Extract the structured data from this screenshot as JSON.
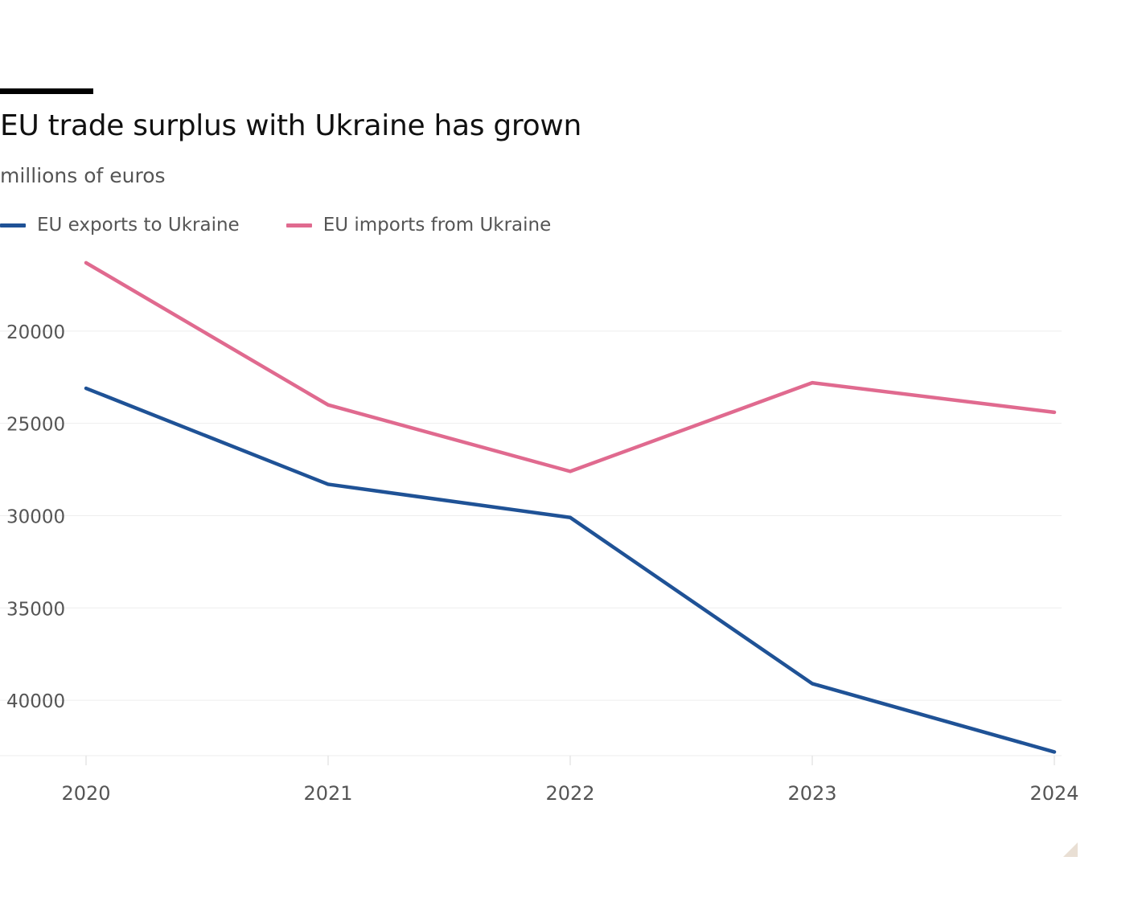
{
  "header": {
    "title": "EU trade surplus with Ukraine has grown",
    "subtitle": "millions of euros"
  },
  "colors": {
    "exports": "#1f5296",
    "imports": "#e06a8f",
    "grid": "#eeeeee",
    "tick": "#e5e5e5",
    "text": "#555555"
  },
  "chart_data": {
    "type": "line",
    "title": "EU trade surplus with Ukraine has grown",
    "subtitle": "millions of euros",
    "xlabel": "",
    "ylabel": "",
    "x": [
      "2020",
      "2021",
      "2022",
      "2023",
      "2024"
    ],
    "y_ticks": [
      20000,
      25000,
      30000,
      35000,
      40000
    ],
    "y_tick_labels": [
      "20000",
      "25000",
      "30000",
      "35000",
      "40000"
    ],
    "ylim": [
      16000,
      43000
    ],
    "y_inverted": true,
    "grid": "horizontal",
    "legend": "top",
    "series": [
      {
        "key": "exports",
        "name": "EU exports to Ukraine",
        "values": [
          23100,
          28300,
          30100,
          39100,
          42800
        ]
      },
      {
        "key": "imports",
        "name": "EU imports from Ukraine",
        "values": [
          16300,
          24000,
          27600,
          22800,
          24400
        ]
      }
    ]
  }
}
